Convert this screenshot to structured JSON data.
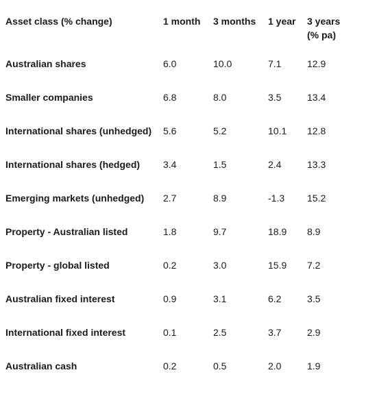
{
  "table": {
    "headers": [
      "Asset class (% change)",
      "1 month",
      "3 months",
      "1 year",
      "3 years (% pa)"
    ],
    "rows": [
      {
        "label": "Australian shares",
        "m1": "6.0",
        "m3": "10.0",
        "y1": "7.1",
        "y3": "12.9"
      },
      {
        "label": "Smaller companies",
        "m1": "6.8",
        "m3": "8.0",
        "y1": "3.5",
        "y3": "13.4"
      },
      {
        "label": "International shares (unhedged)",
        "m1": "5.6",
        "m3": "5.2",
        "y1": "10.1",
        "y3": "12.8"
      },
      {
        "label": "International shares (hedged)",
        "m1": "3.4",
        "m3": "1.5",
        "y1": "2.4",
        "y3": "13.3"
      },
      {
        "label": "Emerging markets (unhedged)",
        "m1": "2.7",
        "m3": "8.9",
        "y1": "-1.3",
        "y3": "15.2"
      },
      {
        "label": "Property - Australian listed",
        "m1": "1.8",
        "m3": "9.7",
        "y1": "18.9",
        "y3": "8.9"
      },
      {
        "label": "Property - global listed",
        "m1": "0.2",
        "m3": "3.0",
        "y1": "15.9",
        "y3": "7.2"
      },
      {
        "label": "Australian fixed interest",
        "m1": "0.9",
        "m3": "3.1",
        "y1": "6.2",
        "y3": "3.5"
      },
      {
        "label": "International fixed interest",
        "m1": "0.1",
        "m3": "2.5",
        "y1": "3.7",
        "y3": "2.9"
      },
      {
        "label": "Australian cash",
        "m1": "0.2",
        "m3": "0.5",
        "y1": "2.0",
        "y3": "1.9"
      }
    ]
  }
}
